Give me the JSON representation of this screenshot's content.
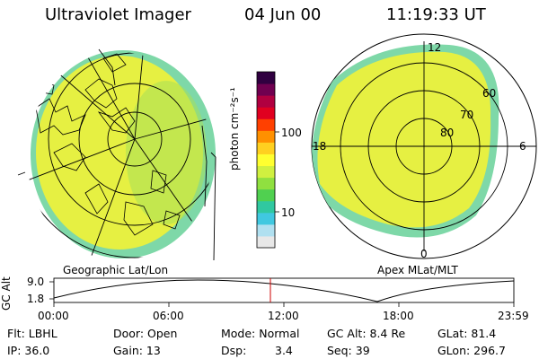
{
  "header": {
    "title": "Ultraviolet Imager",
    "date": "04 Jun 00",
    "time": "11:19:33 UT"
  },
  "colorbar": {
    "label": "photon cm⁻²s⁻¹",
    "tick_high": "100",
    "tick_low": "10",
    "colors": [
      "#e8e8e8",
      "#b0e0f0",
      "#40c8e0",
      "#30c8a0",
      "#50d050",
      "#90e040",
      "#d0f040",
      "#ffff30",
      "#ffd020",
      "#ff9000",
      "#ff4000",
      "#e00020",
      "#b00040",
      "#700050",
      "#300040"
    ]
  },
  "left_panel": {
    "caption": "Geographic Lat/Lon",
    "fill_color": "#e6f042",
    "edge_color": "#5fd68a"
  },
  "right_panel": {
    "caption": "Apex MLat/MLT",
    "label_12": "12",
    "label_18": "18",
    "label_6": "6",
    "label_0": "0",
    "label_60": "60",
    "label_70": "70",
    "label_80": "80",
    "fill_color": "#e6f042",
    "edge_color": "#5fd68a"
  },
  "timeline": {
    "axis_label": "GC Alt",
    "y_high": "9.0",
    "y_low": "1.8",
    "x_ticks": [
      "00:00",
      "06:00",
      "12:00",
      "18:00",
      "23:59"
    ],
    "marker_color": "#cc0000"
  },
  "info": {
    "flt": "Flt: LBHL",
    "ip": "IP: 36.0",
    "door": "Door: Open",
    "gain": "Gain: 13",
    "mode": "Mode: Normal",
    "dsp_label": "Dsp:",
    "dsp_value": "3.4",
    "gc_alt": "GC Alt: 8.4 Re",
    "seq": "Seq: 39",
    "glat": "GLat: 81.4",
    "glon": "GLon: 296.7"
  }
}
